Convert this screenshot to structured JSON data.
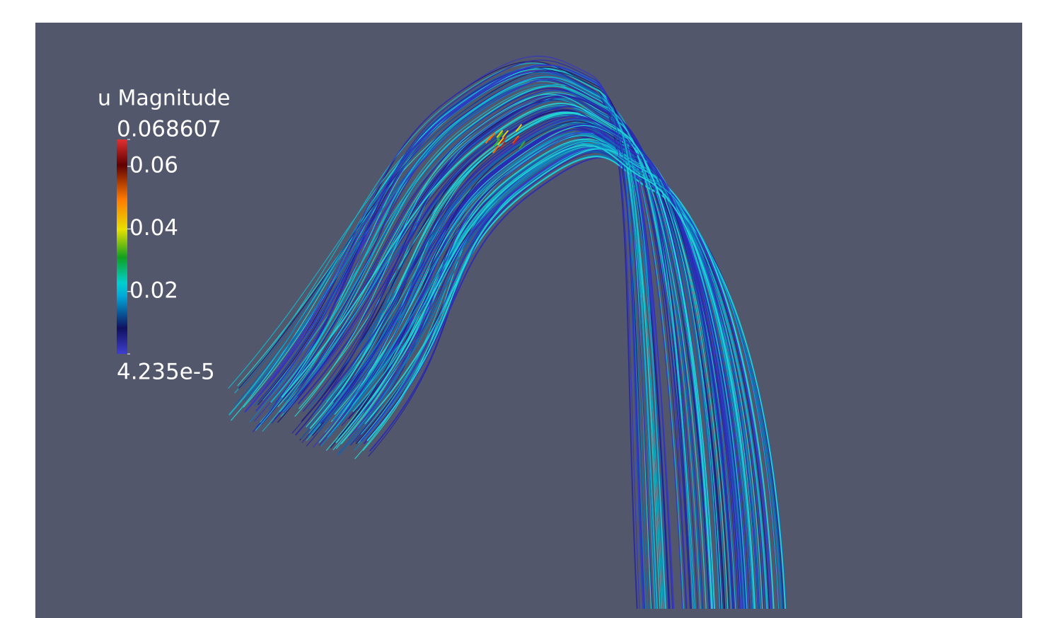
{
  "legend": {
    "title": "u Magnitude",
    "range": [
      {
        "value": 4.235e-05,
        "label": "4.235e-5"
      },
      {
        "value": 0.068607,
        "label": "0.068607"
      }
    ],
    "ticks": [
      0.02,
      0.04,
      0.06
    ]
  }
}
